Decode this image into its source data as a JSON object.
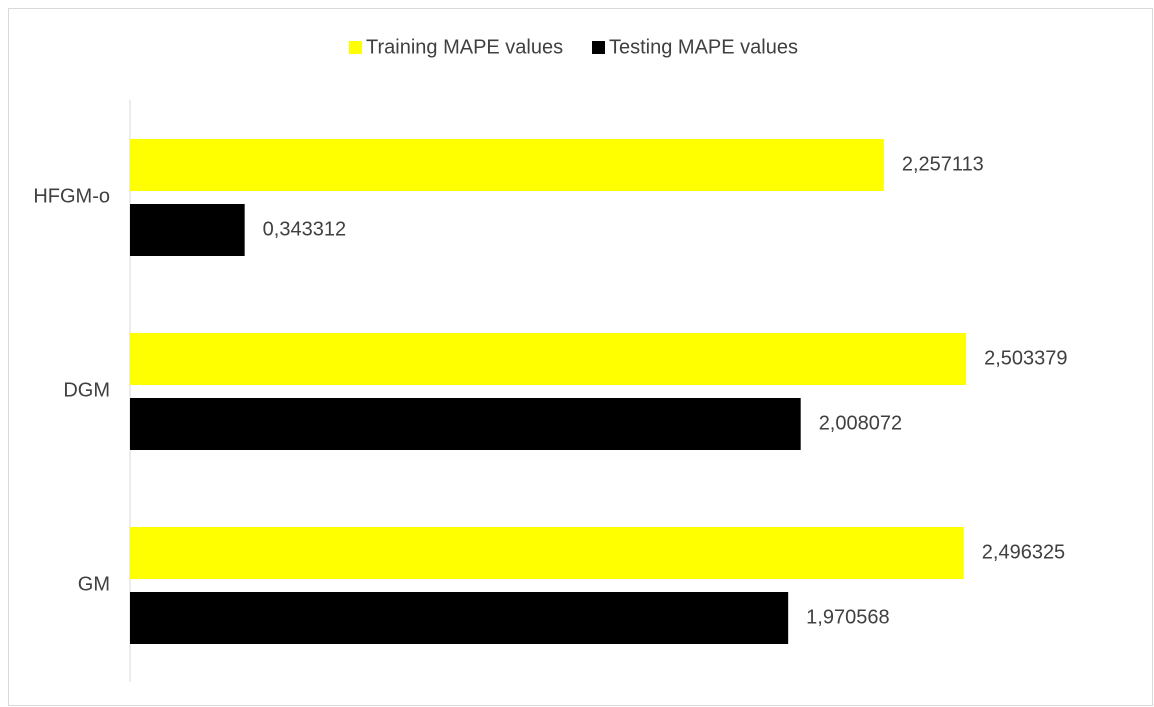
{
  "chart_data": {
    "type": "hbar",
    "categories": [
      "HFGM-o",
      "DGM",
      "GM"
    ],
    "series": [
      {
        "name": "Training MAPE values",
        "color": "#ffff00",
        "values": [
          2.257113,
          2.503379,
          2.496325
        ],
        "value_labels": [
          "2,257113",
          "2,503379",
          "2,496325"
        ]
      },
      {
        "name": "Testing MAPE values",
        "color": "#000000",
        "values": [
          0.343312,
          2.008072,
          1.970568
        ],
        "value_labels": [
          "0,343312",
          "2,008072",
          "1,970568"
        ]
      }
    ],
    "xlim": [
      0,
      3
    ],
    "legend": "top"
  }
}
